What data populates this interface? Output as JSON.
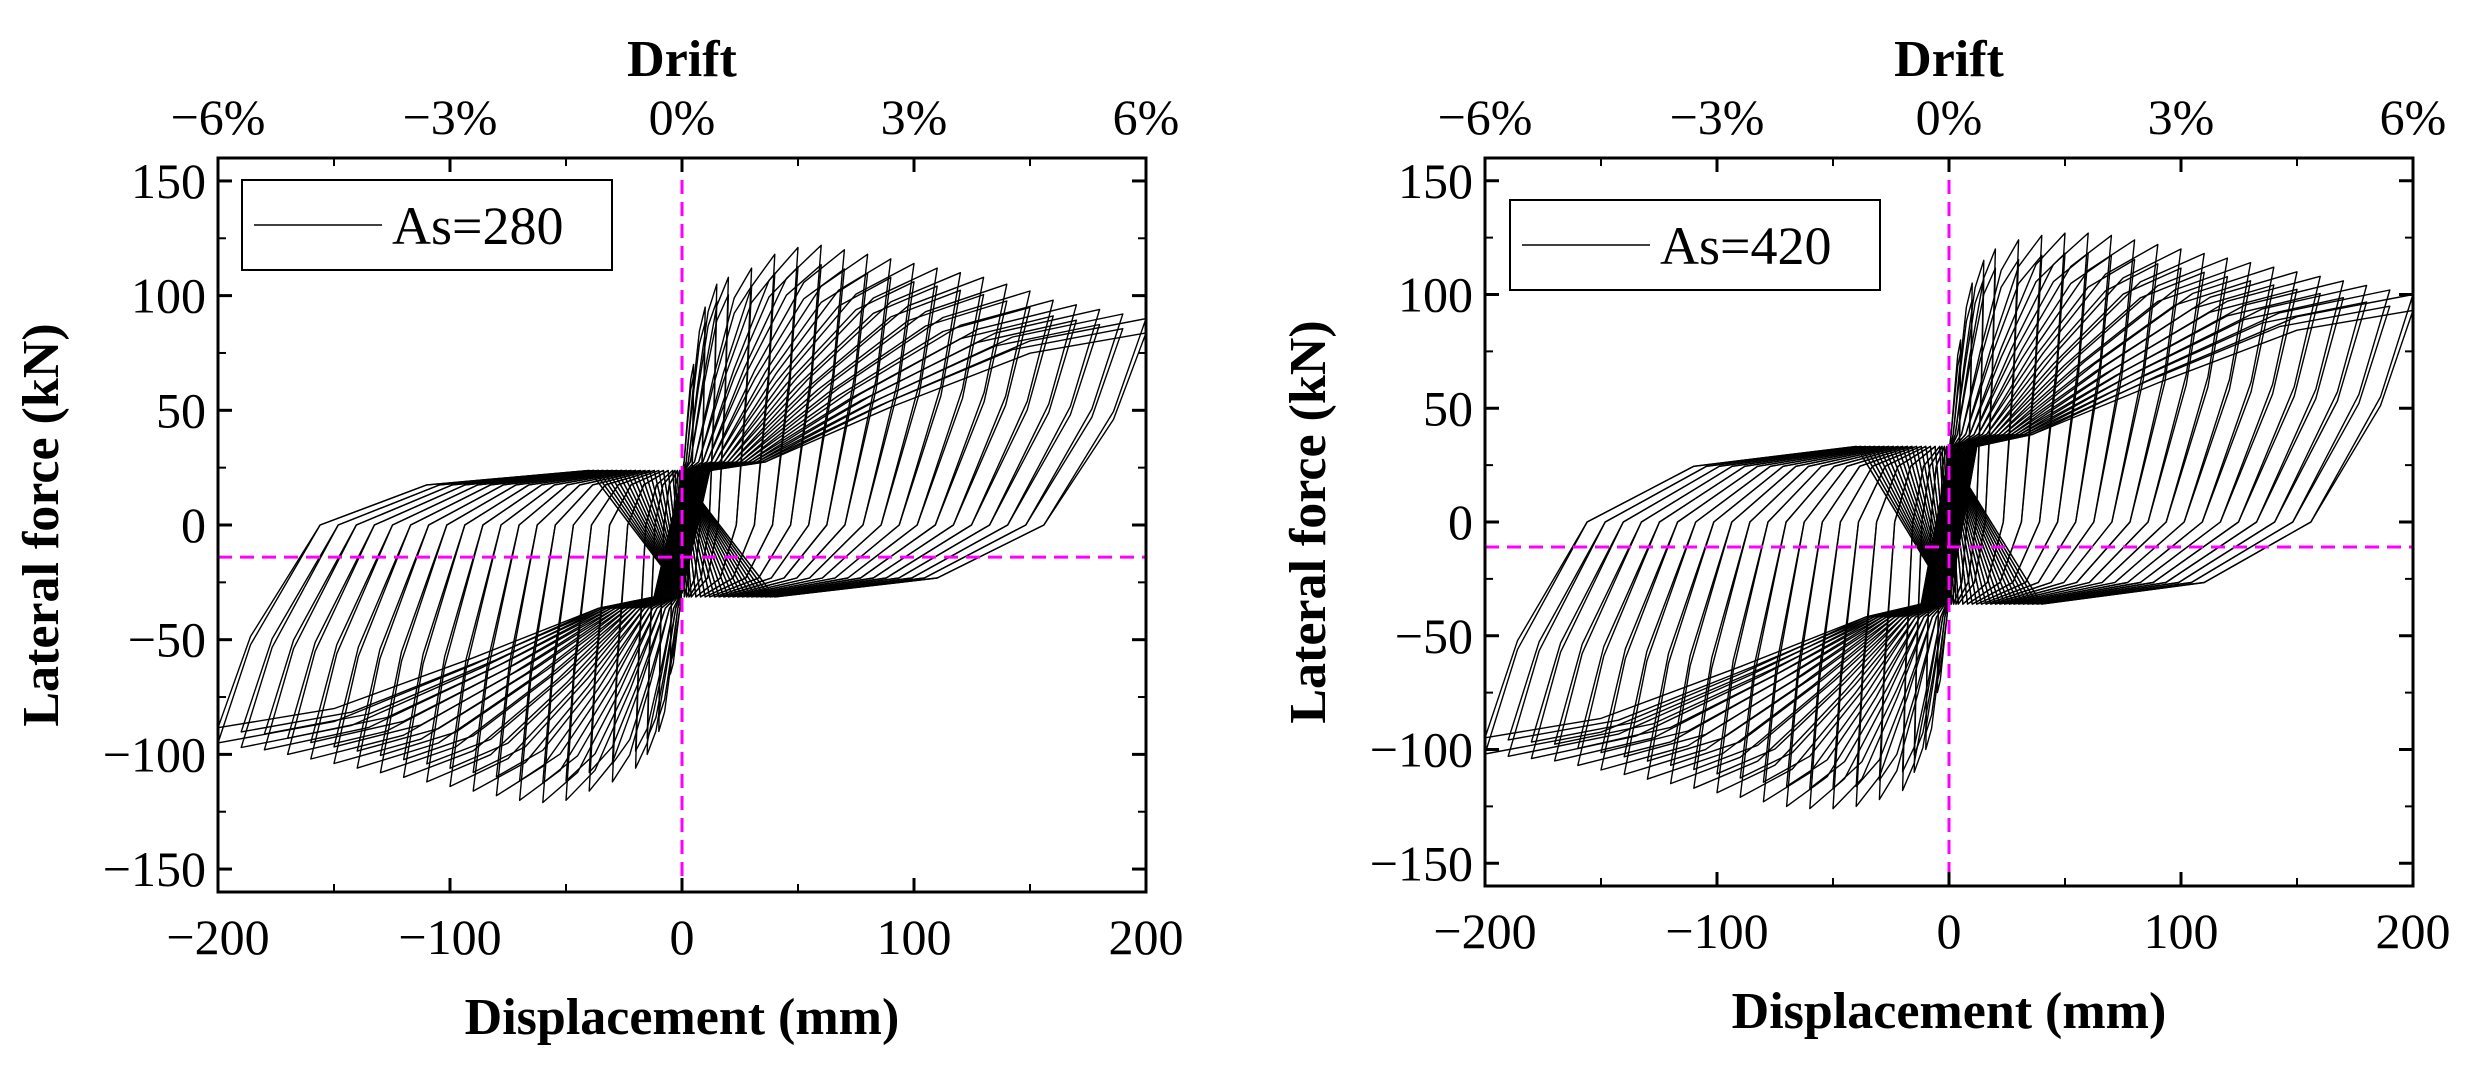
{
  "chart_data": [
    {
      "type": "line",
      "legend": "As=280",
      "legend_position": "top-left",
      "xlabel": "Displacement (mm)",
      "ylabel": "Lateral force (kN)",
      "top_axis_label": "Drift",
      "xlim": [
        -200,
        200
      ],
      "ylim": [
        -160,
        160
      ],
      "x_ticks": [
        -200,
        -100,
        0,
        100,
        200
      ],
      "x_tick_labels": [
        "−200",
        "−100",
        "0",
        "100",
        "200"
      ],
      "y_ticks": [
        150,
        100,
        50,
        0,
        -50,
        -100,
        -150
      ],
      "y_tick_labels": [
        "150",
        "100",
        "50",
        "0",
        "−50",
        "−100",
        "−150"
      ],
      "drift_ticks_mm": [
        -200,
        -100,
        0,
        100,
        200
      ],
      "drift_tick_labels": [
        "−6%",
        "−3%",
        "0%",
        "3%",
        "6%"
      ],
      "reference_lines": {
        "vertical_x": 0,
        "horizontal_y": -14,
        "color": "#ff00ff"
      },
      "cycles": {
        "amplitudes_mm": [
          5,
          10,
          15,
          20,
          30,
          40,
          50,
          60,
          70,
          80,
          90,
          100,
          110,
          120,
          130,
          140,
          150,
          160,
          170,
          180,
          190,
          200
        ],
        "peak_force_pos_kN": [
          70,
          95,
          105,
          108,
          112,
          118,
          121,
          122,
          120,
          118,
          116,
          114,
          112,
          110,
          108,
          105,
          102,
          98,
          96,
          94,
          92,
          90
        ],
        "peak_force_neg_kN": [
          -65,
          -90,
          -100,
          -106,
          -112,
          -116,
          -120,
          -121,
          -120,
          -118,
          -116,
          -114,
          -112,
          -110,
          -108,
          -106,
          -104,
          -102,
          -100,
          -98,
          -97,
          -95
        ],
        "pinch_force_pos_kN": 25,
        "pinch_force_neg_kN": -33
      },
      "color": "#000000"
    },
    {
      "type": "line",
      "legend": "As=420",
      "legend_position": "top-left",
      "xlabel": "Displacement (mm)",
      "ylabel": "Lateral force (kN)",
      "top_axis_label": "Drift",
      "xlim": [
        -200,
        200
      ],
      "ylim": [
        -160,
        160
      ],
      "x_ticks": [
        -200,
        -100,
        0,
        100,
        200
      ],
      "x_tick_labels": [
        "−200",
        "−100",
        "0",
        "100",
        "200"
      ],
      "y_ticks": [
        150,
        100,
        50,
        0,
        -50,
        -100,
        -150
      ],
      "y_tick_labels": [
        "150",
        "100",
        "50",
        "0",
        "−50",
        "−100",
        "−150"
      ],
      "drift_ticks_mm": [
        -200,
        -100,
        0,
        100,
        200
      ],
      "drift_tick_labels": [
        "−6%",
        "−3%",
        "0%",
        "3%",
        "6%"
      ],
      "reference_lines": {
        "vertical_x": 0,
        "horizontal_y": -11,
        "color": "#ff00ff"
      },
      "cycles": {
        "amplitudes_mm": [
          5,
          10,
          15,
          20,
          30,
          40,
          50,
          60,
          70,
          80,
          90,
          100,
          110,
          120,
          130,
          140,
          150,
          160,
          170,
          180,
          190,
          200
        ],
        "peak_force_pos_kN": [
          80,
          105,
          115,
          120,
          124,
          126,
          127,
          127,
          126,
          124,
          122,
          120,
          118,
          116,
          114,
          112,
          110,
          108,
          106,
          104,
          102,
          100
        ],
        "peak_force_neg_kN": [
          -75,
          -100,
          -110,
          -118,
          -122,
          -125,
          -126,
          -126,
          -125,
          -123,
          -121,
          -119,
          -117,
          -115,
          -113,
          -111,
          -109,
          -107,
          -105,
          -104,
          -103,
          -102
        ],
        "pinch_force_pos_kN": 35,
        "pinch_force_neg_kN": -38
      },
      "color": "#000000"
    }
  ]
}
